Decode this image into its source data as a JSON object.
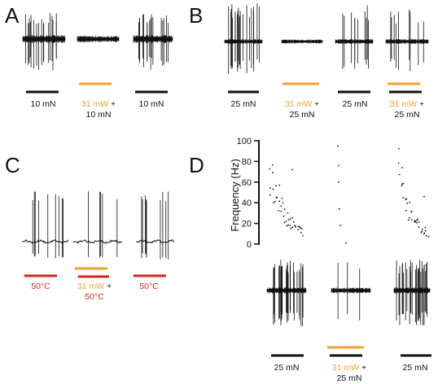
{
  "panels": {
    "A": {
      "letter": "A",
      "labels": [
        {
          "line1": "10 mN"
        },
        {
          "line1a": "31 mW",
          "line1b": " +",
          "line2": "10 mN"
        },
        {
          "line1": "10 mN"
        }
      ]
    },
    "B": {
      "letter": "B",
      "labels": [
        {
          "line1": "25 mN"
        },
        {
          "line1a": "31 mW",
          "line1b": " +",
          "line2": "25 mN"
        },
        {
          "line1": "25 mN"
        },
        {
          "line1a": "31 mW",
          "line1b": " +",
          "line2": "25 mN"
        }
      ]
    },
    "C": {
      "letter": "C",
      "labels": [
        {
          "line1": "50°C"
        },
        {
          "line1a": "31 mW",
          "line1b": " +",
          "line2": "50°C"
        },
        {
          "line1": "50°C"
        }
      ]
    },
    "D": {
      "letter": "D",
      "ylabel": "Frequency (Hz)",
      "yticks": [
        "0",
        "20",
        "40",
        "60",
        "80",
        "100"
      ],
      "labels": [
        {
          "line1": "25 mN"
        },
        {
          "line1a": "31 mW",
          "line1b": " +",
          "line2": "25 mN"
        },
        {
          "line1": "25 mN"
        }
      ]
    }
  },
  "colors": {
    "laser": "#f0a22e",
    "heat": "#d2261b",
    "mechanical": "#111111",
    "trace": "#111111"
  }
}
